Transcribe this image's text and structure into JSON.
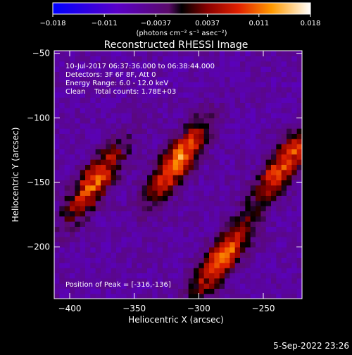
{
  "colorbar": {
    "ticks": [
      "-0.018",
      "-0.011",
      "-0.0037",
      "0.0037",
      "0.011",
      "0.018"
    ],
    "min": -0.018,
    "max": 0.018,
    "unit_label": "(photons cm⁻² s⁻¹ asec⁻²)"
  },
  "title": "Reconstructed RHESSI Image",
  "info_lines": [
    "10-Jul-2017 06:37:36.000 to 06:38:44.000",
    "Detectors: 3F 6F 8F, Att 0",
    "Energy Range: 6.0 - 12.0 keV",
    "Clean    Total counts: 1.78E+03"
  ],
  "peak_text": "Position of Peak = [-316,-136]",
  "footer_date": "5-Sep-2022 23:26",
  "chart_data": {
    "type": "heatmap",
    "title": "Reconstructed RHESSI Image",
    "xlabel": "Heliocentric X (arcsec)",
    "ylabel": "Heliocentric Y (arcsec)",
    "xlim": [
      -412,
      -220
    ],
    "ylim": [
      -240,
      -48
    ],
    "xticks": [
      -400,
      -350,
      -300,
      -250
    ],
    "yticks": [
      -50,
      -100,
      -150,
      -200
    ],
    "xtick_labels": [
      "−400",
      "−350",
      "−300",
      "−250"
    ],
    "ytick_labels": [
      "−50",
      "−100",
      "−150",
      "−200"
    ],
    "colormap": "RHESSI flux (blue-purple-red-orange-yellow-white)",
    "peak_position": [
      -316,
      -136
    ],
    "sources": [
      {
        "x": -383,
        "y": -152,
        "peak": 0.016
      },
      {
        "x": -318,
        "y": -135,
        "peak": 0.018
      },
      {
        "x": -284,
        "y": -210,
        "peak": 0.017
      },
      {
        "x": -236,
        "y": -138,
        "peak": 0.016
      }
    ]
  }
}
